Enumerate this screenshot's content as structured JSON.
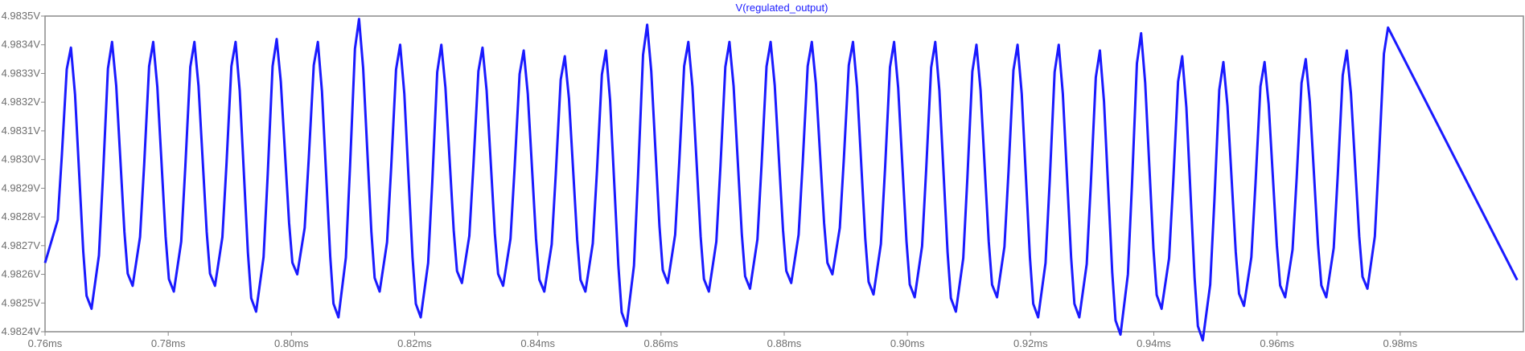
{
  "chart_data": {
    "type": "line",
    "title": "V(regulated_output)",
    "xlabel": "",
    "ylabel": "",
    "xlim": [
      0.76,
      1.0
    ],
    "ylim": [
      4.9824,
      4.9835
    ],
    "x_unit": "ms",
    "y_unit": "V",
    "grid": false,
    "x_ticks": [
      "0.76ms",
      "0.78ms",
      "0.80ms",
      "0.82ms",
      "0.84ms",
      "0.86ms",
      "0.88ms",
      "0.90ms",
      "0.92ms",
      "0.94ms",
      "0.96ms",
      "0.98ms"
    ],
    "y_ticks": [
      "4.9824V",
      "4.9825V",
      "4.9826V",
      "4.9827V",
      "4.9828V",
      "4.9829V",
      "4.9830V",
      "4.9831V",
      "4.9832V",
      "4.9833V",
      "4.9834V",
      "4.9835V"
    ],
    "series": [
      {
        "name": "V(regulated_output)",
        "color": "#1a1aff",
        "cycle_start": 0.7642,
        "cycle_period": 0.006682,
        "peaks": [
          4.98339,
          4.98341,
          4.98341,
          4.98341,
          4.98341,
          4.98342,
          4.98341,
          4.98349,
          4.9834,
          4.9834,
          4.98339,
          4.98338,
          4.98336,
          4.98338,
          4.98347,
          4.98341,
          4.98341,
          4.98341,
          4.98341,
          4.98341,
          4.98341,
          4.98341,
          4.9834,
          4.9834,
          4.9834,
          4.98338,
          4.98344,
          4.98336,
          4.98334,
          4.98334,
          4.98335,
          4.98338,
          4.98346
        ],
        "troughs": [
          4.98248,
          4.98256,
          4.98254,
          4.98256,
          4.98247,
          4.9826,
          4.98245,
          4.98254,
          4.98245,
          4.98257,
          4.98256,
          4.98254,
          4.98254,
          4.98242,
          4.98257,
          4.98254,
          4.98255,
          4.98257,
          4.9826,
          4.98253,
          4.98252,
          4.98247,
          4.98252,
          4.98245,
          4.98245,
          4.98239,
          4.98248,
          4.98237,
          4.98249,
          4.98252,
          4.98252,
          4.98255
        ],
        "start": {
          "x": 0.76,
          "y": 4.98264
        },
        "end": {
          "x": 0.999,
          "y": 4.98258
        }
      }
    ]
  }
}
